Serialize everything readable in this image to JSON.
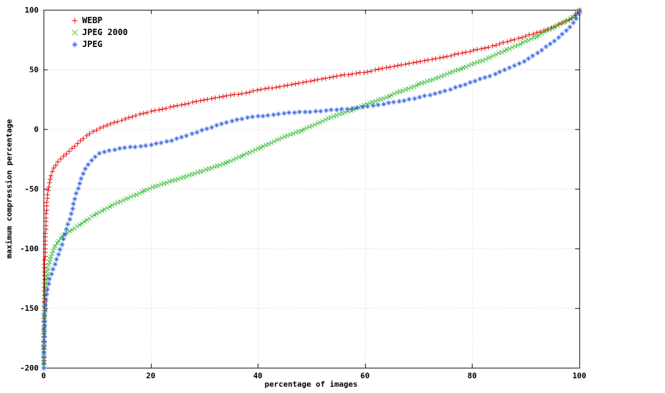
{
  "figure": {
    "background": "#ffffff",
    "axis_color": "#000000",
    "grid_color": "#c4c4c4"
  },
  "chart_data": {
    "type": "scatter",
    "title": "",
    "xlabel": "percentage of images",
    "ylabel": "maximum compression percentage",
    "xlim": [
      0,
      100
    ],
    "ylim": [
      -200,
      100
    ],
    "x_ticks": [
      0,
      20,
      40,
      60,
      80,
      100
    ],
    "y_ticks": [
      -200,
      -150,
      -100,
      -50,
      0,
      50,
      100
    ],
    "grid": true,
    "legend_position": "top-left",
    "series": [
      {
        "name": "WEBP",
        "color": "#e60000",
        "marker": "plus",
        "marker_spacing_px": 5.5,
        "points": [
          [
            0,
            -200
          ],
          [
            0.06,
            -155
          ],
          [
            0.12,
            -128
          ],
          [
            0.2,
            -106
          ],
          [
            0.3,
            -90
          ],
          [
            0.4,
            -76
          ],
          [
            0.5,
            -66
          ],
          [
            0.65,
            -57
          ],
          [
            0.8,
            -51
          ],
          [
            1,
            -45
          ],
          [
            1.3,
            -39
          ],
          [
            1.6,
            -35
          ],
          [
            2,
            -31
          ],
          [
            2.5,
            -28
          ],
          [
            3,
            -25
          ],
          [
            4,
            -21
          ],
          [
            5,
            -17
          ],
          [
            6,
            -13
          ],
          [
            7,
            -9
          ],
          [
            8,
            -5
          ],
          [
            9,
            -2
          ],
          [
            10,
            0
          ],
          [
            12,
            4
          ],
          [
            14,
            7
          ],
          [
            16,
            10
          ],
          [
            18,
            13
          ],
          [
            20,
            15
          ],
          [
            23,
            18
          ],
          [
            26,
            21
          ],
          [
            30,
            25
          ],
          [
            34,
            28
          ],
          [
            38,
            31
          ],
          [
            40,
            33
          ],
          [
            44,
            36
          ],
          [
            48,
            39
          ],
          [
            50,
            41
          ],
          [
            54,
            44
          ],
          [
            58,
            47
          ],
          [
            60,
            48
          ],
          [
            64,
            52
          ],
          [
            68,
            55
          ],
          [
            70,
            57
          ],
          [
            74,
            60
          ],
          [
            78,
            64
          ],
          [
            80,
            66
          ],
          [
            83,
            69
          ],
          [
            86,
            73
          ],
          [
            89,
            77
          ],
          [
            92,
            81
          ],
          [
            94,
            84
          ],
          [
            96,
            88
          ],
          [
            97,
            90
          ],
          [
            98,
            92
          ],
          [
            99,
            95
          ],
          [
            99.5,
            97
          ],
          [
            100,
            100
          ]
        ]
      },
      {
        "name": "JPEG 2000",
        "color": "#00a800",
        "marker": "cross",
        "marker_spacing_px": 4.2,
        "points": [
          [
            0,
            -200
          ],
          [
            0.06,
            -168
          ],
          [
            0.12,
            -150
          ],
          [
            0.2,
            -140
          ],
          [
            0.35,
            -130
          ],
          [
            0.5,
            -124
          ],
          [
            0.7,
            -118
          ],
          [
            1,
            -112
          ],
          [
            1.4,
            -106
          ],
          [
            1.8,
            -101
          ],
          [
            2.2,
            -97
          ],
          [
            2.8,
            -93
          ],
          [
            3.5,
            -89
          ],
          [
            4.2,
            -87
          ],
          [
            5,
            -85
          ],
          [
            6,
            -82
          ],
          [
            7,
            -79
          ],
          [
            8,
            -76
          ],
          [
            9,
            -73
          ],
          [
            10,
            -70
          ],
          [
            11,
            -68
          ],
          [
            12,
            -65
          ],
          [
            13,
            -63
          ],
          [
            14,
            -61
          ],
          [
            15,
            -59
          ],
          [
            16,
            -57
          ],
          [
            17,
            -55
          ],
          [
            18,
            -53
          ],
          [
            19,
            -51
          ],
          [
            20,
            -49
          ],
          [
            22,
            -46
          ],
          [
            24,
            -43
          ],
          [
            26,
            -40
          ],
          [
            28,
            -37
          ],
          [
            30,
            -34
          ],
          [
            32,
            -31
          ],
          [
            34,
            -28
          ],
          [
            36,
            -24
          ],
          [
            38,
            -20
          ],
          [
            40,
            -16
          ],
          [
            42,
            -12
          ],
          [
            44,
            -8
          ],
          [
            46,
            -4
          ],
          [
            48,
            -1
          ],
          [
            50,
            3
          ],
          [
            52,
            7
          ],
          [
            54,
            11
          ],
          [
            56,
            14
          ],
          [
            58,
            17
          ],
          [
            60,
            21
          ],
          [
            62,
            24
          ],
          [
            64,
            27
          ],
          [
            66,
            31
          ],
          [
            68,
            34
          ],
          [
            70,
            38
          ],
          [
            72,
            41
          ],
          [
            74,
            44
          ],
          [
            76,
            48
          ],
          [
            78,
            51
          ],
          [
            80,
            55
          ],
          [
            82,
            58
          ],
          [
            84,
            62
          ],
          [
            86,
            66
          ],
          [
            88,
            70
          ],
          [
            90,
            74
          ],
          [
            92,
            78
          ],
          [
            94,
            83
          ],
          [
            96,
            87
          ],
          [
            97,
            90
          ],
          [
            98,
            92
          ],
          [
            99,
            95
          ],
          [
            100,
            100
          ]
        ]
      },
      {
        "name": "JPEG",
        "color": "#3a66e0",
        "marker": "asterisk",
        "marker_spacing_px": 7.5,
        "points": [
          [
            0,
            -200
          ],
          [
            0.08,
            -175
          ],
          [
            0.15,
            -160
          ],
          [
            0.25,
            -150
          ],
          [
            0.4,
            -142
          ],
          [
            0.6,
            -136
          ],
          [
            0.8,
            -131
          ],
          [
            1,
            -127
          ],
          [
            1.4,
            -121
          ],
          [
            1.8,
            -116
          ],
          [
            2.2,
            -111
          ],
          [
            2.6,
            -106
          ],
          [
            3,
            -101
          ],
          [
            3.4,
            -96
          ],
          [
            3.8,
            -90
          ],
          [
            4.2,
            -84
          ],
          [
            4.6,
            -78
          ],
          [
            5,
            -72
          ],
          [
            5.4,
            -65
          ],
          [
            5.8,
            -58
          ],
          [
            6.2,
            -52
          ],
          [
            6.6,
            -46
          ],
          [
            7,
            -41
          ],
          [
            7.5,
            -36
          ],
          [
            8,
            -31
          ],
          [
            8.5,
            -28
          ],
          [
            9,
            -25
          ],
          [
            9.5,
            -23
          ],
          [
            10,
            -21
          ],
          [
            11,
            -19
          ],
          [
            12,
            -18
          ],
          [
            13,
            -17
          ],
          [
            14,
            -16
          ],
          [
            16,
            -15
          ],
          [
            18,
            -14
          ],
          [
            20,
            -13
          ],
          [
            22,
            -11
          ],
          [
            24,
            -9
          ],
          [
            26,
            -6
          ],
          [
            28,
            -3
          ],
          [
            30,
            0
          ],
          [
            32,
            3
          ],
          [
            34,
            6
          ],
          [
            36,
            8
          ],
          [
            38,
            10
          ],
          [
            40,
            11
          ],
          [
            42,
            12
          ],
          [
            44,
            13
          ],
          [
            46,
            14
          ],
          [
            48,
            14.5
          ],
          [
            50,
            15
          ],
          [
            53,
            16
          ],
          [
            56,
            17
          ],
          [
            58,
            18
          ],
          [
            60,
            19
          ],
          [
            62,
            20
          ],
          [
            64,
            22
          ],
          [
            66,
            23
          ],
          [
            68,
            25
          ],
          [
            70,
            27
          ],
          [
            72,
            29
          ],
          [
            74,
            31
          ],
          [
            76,
            34
          ],
          [
            78,
            37
          ],
          [
            80,
            40
          ],
          [
            82,
            43
          ],
          [
            84,
            46
          ],
          [
            86,
            50
          ],
          [
            88,
            54
          ],
          [
            90,
            58
          ],
          [
            91,
            61
          ],
          [
            92,
            64
          ],
          [
            93,
            67
          ],
          [
            94,
            70
          ],
          [
            95,
            73
          ],
          [
            96,
            77
          ],
          [
            97,
            81
          ],
          [
            98,
            85
          ],
          [
            99,
            90
          ],
          [
            99.5,
            94
          ],
          [
            100,
            99
          ]
        ]
      }
    ]
  }
}
